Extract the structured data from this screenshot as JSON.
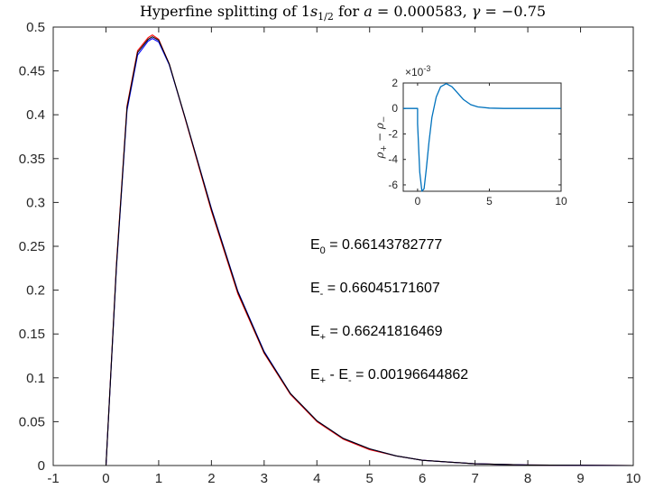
{
  "chart_data": [
    {
      "type": "line",
      "title_parts": [
        "Hyperfine splitting of 1",
        "s",
        "1/2",
        " for ",
        "a",
        " = 0.000583, ",
        "γ",
        " = −0.75"
      ],
      "xlim": [
        -1,
        10
      ],
      "ylim": [
        0,
        0.5
      ],
      "xticks": [
        "-1",
        "0",
        "1",
        "2",
        "3",
        "4",
        "5",
        "6",
        "7",
        "8",
        "9",
        "10"
      ],
      "yticks": [
        "0",
        "0.05",
        "0.1",
        "0.15",
        "0.2",
        "0.25",
        "0.3",
        "0.35",
        "0.4",
        "0.45",
        "0.5"
      ],
      "series": [
        {
          "color": "#ff0000",
          "x": [
            0,
            0.2,
            0.4,
            0.6,
            0.8,
            0.88,
            1.0,
            1.2,
            1.5,
            2.0,
            2.5,
            3.0,
            3.5,
            4.0,
            4.5,
            5.0,
            5.5,
            6.0,
            7.0,
            8.0,
            10.0
          ],
          "y": [
            0,
            0.23,
            0.41,
            0.473,
            0.488,
            0.491,
            0.486,
            0.458,
            0.396,
            0.29,
            0.196,
            0.128,
            0.081,
            0.05,
            0.03,
            0.018,
            0.011,
            0.006,
            0.002,
            0.0006,
            0.0
          ]
        },
        {
          "color": "#0000ff",
          "x": [
            0,
            0.2,
            0.4,
            0.6,
            0.8,
            0.88,
            1.0,
            1.2,
            1.5,
            2.0,
            2.5,
            3.0,
            3.5,
            4.0,
            4.5,
            5.0,
            5.5,
            6.0,
            7.0,
            8.0,
            10.0
          ],
          "y": [
            0,
            0.226,
            0.405,
            0.468,
            0.484,
            0.487,
            0.483,
            0.457,
            0.397,
            0.293,
            0.199,
            0.13,
            0.082,
            0.051,
            0.031,
            0.019,
            0.011,
            0.006,
            0.002,
            0.0006,
            0.0
          ]
        },
        {
          "color": "#000000",
          "x": [
            0,
            0.2,
            0.4,
            0.6,
            0.8,
            0.88,
            1.0,
            1.2,
            1.5,
            2.0,
            2.5,
            3.0,
            3.5,
            4.0,
            4.5,
            5.0,
            5.5,
            6.0,
            7.0,
            8.0,
            10.0
          ],
          "y": [
            0,
            0.228,
            0.408,
            0.471,
            0.486,
            0.489,
            0.485,
            0.458,
            0.397,
            0.292,
            0.198,
            0.129,
            0.082,
            0.051,
            0.031,
            0.019,
            0.011,
            0.006,
            0.002,
            0.0006,
            0.0
          ]
        }
      ],
      "annotations": [
        {
          "main": "E",
          "sub": "0",
          "rest": " = 0.66143782777"
        },
        {
          "main": "E",
          "sub": "-",
          "rest": " = 0.66045171607"
        },
        {
          "main": "E",
          "sub": "+",
          "rest": " = 0.66241816469"
        },
        {
          "main": "E",
          "sub": "+",
          "rest": " - E",
          "sub2": "-",
          "rest2": " = 0.00196644862"
        }
      ]
    },
    {
      "type": "line",
      "inset": true,
      "xlim": [
        -1,
        10
      ],
      "ylim": [
        -6.5,
        2
      ],
      "xticks": [
        "0",
        "5",
        "10"
      ],
      "yticks": [
        "-6",
        "-4",
        "-2",
        "0",
        "2"
      ],
      "exponent_label": "×10",
      "exponent": "-3",
      "ylabel_parts": [
        "ρ",
        "+",
        " − ρ",
        "−"
      ],
      "series": [
        {
          "color": "#0072bd",
          "x": [
            -1,
            0,
            0,
            0.15,
            0.3,
            0.45,
            0.6,
            0.8,
            1.0,
            1.3,
            1.6,
            2.0,
            2.4,
            2.8,
            3.2,
            3.7,
            4.2,
            5.0,
            6.0,
            7.0,
            10.0
          ],
          "y": [
            0,
            0,
            -1.2,
            -5.0,
            -6.5,
            -6.3,
            -4.8,
            -2.6,
            -0.7,
            0.9,
            1.7,
            1.95,
            1.7,
            1.2,
            0.7,
            0.3,
            0.12,
            0.03,
            0.0,
            0.0,
            0.0
          ]
        }
      ]
    }
  ]
}
